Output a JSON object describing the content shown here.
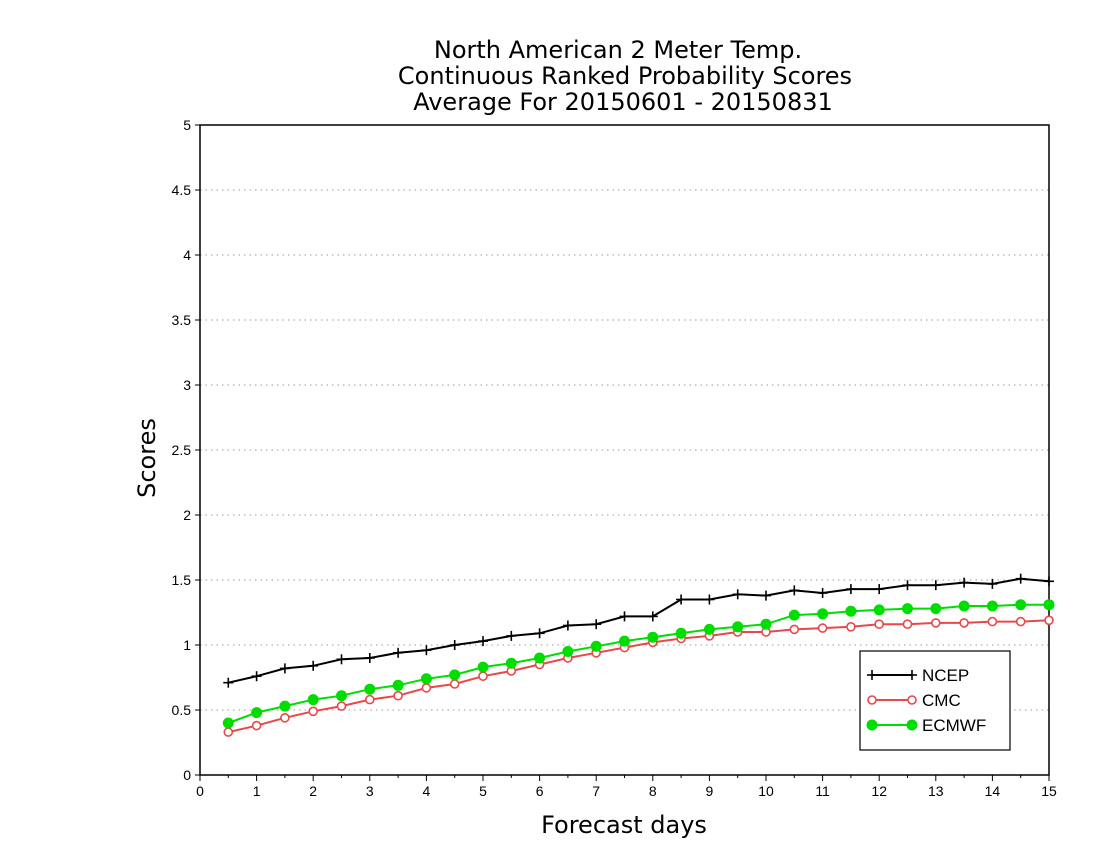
{
  "chart_data": {
    "type": "line",
    "title": [
      "North American 2 Meter Temp.",
      "Continuous Ranked Probability Scores",
      "Average For 20150601 - 20150831"
    ],
    "xlabel": "Forecast days",
    "ylabel": "Scores",
    "xlim": [
      0,
      15
    ],
    "ylim": [
      0,
      5
    ],
    "xticks": [
      "0",
      "1",
      "2",
      "3",
      "4",
      "5",
      "6",
      "7",
      "8",
      "9",
      "10",
      "11",
      "12",
      "13",
      "14",
      "15"
    ],
    "yticks": [
      "0",
      "0.5",
      "1",
      "1.5",
      "2",
      "2.5",
      "3",
      "3.5",
      "4",
      "4.5",
      "5"
    ],
    "grid": "horizontal-dotted",
    "legend_position": "bottom-right",
    "x": [
      0.5,
      1,
      1.5,
      2,
      2.5,
      3,
      3.5,
      4,
      4.5,
      5,
      5.5,
      6,
      6.5,
      7,
      7.5,
      8,
      8.5,
      9,
      9.5,
      10,
      10.5,
      11,
      11.5,
      12,
      12.5,
      13,
      13.5,
      14,
      14.5,
      15
    ],
    "series": [
      {
        "name": "NCEP",
        "color": "#000000",
        "marker": "plus",
        "values": [
          0.71,
          0.76,
          0.82,
          0.84,
          0.89,
          0.9,
          0.94,
          0.96,
          1.0,
          1.03,
          1.07,
          1.09,
          1.15,
          1.16,
          1.22,
          1.22,
          1.35,
          1.35,
          1.39,
          1.38,
          1.42,
          1.4,
          1.43,
          1.43,
          1.46,
          1.46,
          1.48,
          1.47,
          1.51,
          1.49
        ]
      },
      {
        "name": "CMC",
        "color": "#e8484a",
        "marker": "open-circle",
        "values": [
          0.33,
          0.38,
          0.44,
          0.49,
          0.53,
          0.58,
          0.61,
          0.67,
          0.7,
          0.76,
          0.8,
          0.85,
          0.9,
          0.94,
          0.98,
          1.02,
          1.05,
          1.07,
          1.1,
          1.1,
          1.12,
          1.13,
          1.14,
          1.16,
          1.16,
          1.17,
          1.17,
          1.18,
          1.18,
          1.19
        ]
      },
      {
        "name": "ECMWF",
        "color": "#00dd00",
        "marker": "filled-circle",
        "values": [
          0.4,
          0.48,
          0.53,
          0.58,
          0.61,
          0.66,
          0.69,
          0.74,
          0.77,
          0.83,
          0.86,
          0.9,
          0.95,
          0.99,
          1.03,
          1.06,
          1.09,
          1.12,
          1.14,
          1.16,
          1.23,
          1.24,
          1.26,
          1.27,
          1.28,
          1.28,
          1.3,
          1.3,
          1.31,
          1.31
        ]
      }
    ]
  }
}
